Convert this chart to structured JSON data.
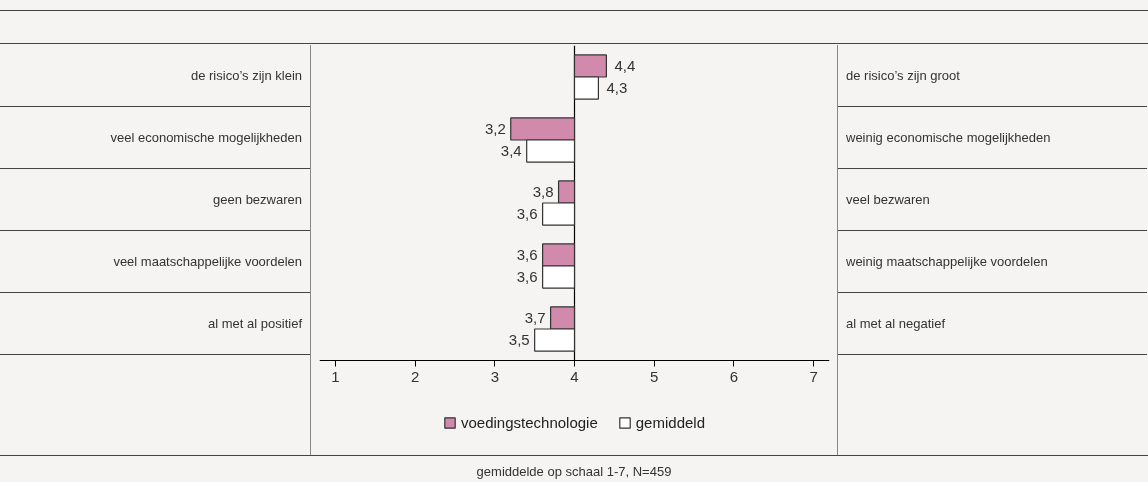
{
  "chart_data": {
    "type": "bar",
    "orientation": "horizontal",
    "categories": [
      "de risico’s zijn klein",
      "veel economische mogelijkheden",
      "geen bezwaren",
      "veel maatschappelijke voordelen",
      "al met al positief"
    ],
    "series": [
      {
        "name": "voedingstechnologie",
        "color": "#d18aac",
        "base": [
          4,
          4,
          4,
          4,
          4
        ],
        "values": [
          0.4,
          -0.8,
          -0.2,
          -0.4,
          -0.3
        ],
        "value_labels": [
          "4,4",
          "3,2",
          "3,8",
          "3,6",
          "3,7"
        ]
      },
      {
        "name": "gemiddeld",
        "color": "#ffffff",
        "base": [
          4,
          4,
          4,
          4,
          4
        ],
        "values": [
          0.3,
          -0.6,
          -0.4,
          -0.4,
          -0.5
        ],
        "value_labels": [
          "4,3",
          "3,4",
          "3,6",
          "3,6",
          "3,5"
        ]
      }
    ],
    "xlim": [
      0.8,
      7.2
    ],
    "xticks": [
      1,
      2,
      3,
      4,
      5,
      6,
      7
    ],
    "ref_lines": [
      {
        "axis": "x",
        "value": 4,
        "color": "#000000"
      }
    ],
    "grid": false,
    "legend": "bottom",
    "tick_labels": "x",
    "annotations": [
      "de risico’s zijn groot",
      "weinig economische mogelijkheden",
      "veel bezwaren",
      "weinig maatschappelijke voordelen",
      "al met al negatief",
      "gemiddelde op schaal 1-7, N=459"
    ]
  }
}
